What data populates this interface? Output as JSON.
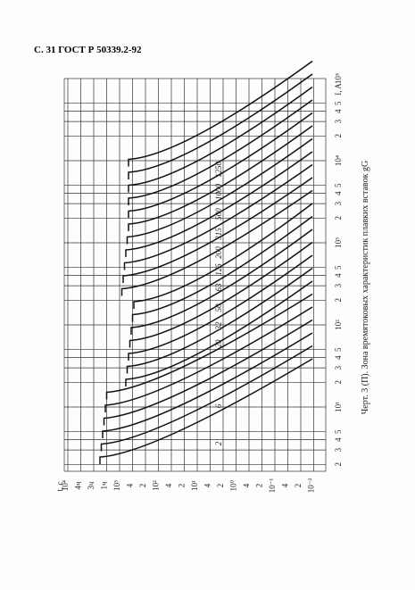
{
  "header": {
    "title": "С. 31 ГОСТ Р 50339.2-92"
  },
  "caption": "Черт. 3 (П). Зона времятоковых характеристик плавких вставок gG",
  "axes": {
    "current_label": "I, A",
    "current_ticks": [
      "2",
      "3",
      "4",
      "5",
      "10¹",
      "2",
      "3",
      "4",
      "5",
      "10²",
      "2",
      "3",
      "4",
      "5",
      "10³",
      "2",
      "3",
      "4",
      "5",
      "10⁴",
      "2",
      "3",
      "4",
      "5",
      "10⁵"
    ],
    "time_label": "t, c",
    "time_ticks": [
      "10⁴",
      "4ч",
      "3ч",
      "1ч",
      "10³",
      "4",
      "2",
      "10²",
      "4",
      "2",
      "10¹",
      "4",
      "2",
      "10⁰",
      "4",
      "2",
      "10⁻¹",
      "4",
      "2",
      "10⁻²"
    ]
  },
  "curve_labels": [
    "2",
    "6",
    "20",
    "32",
    "50",
    "63",
    "125",
    "200",
    "315",
    "500",
    "1000",
    "1250"
  ]
}
